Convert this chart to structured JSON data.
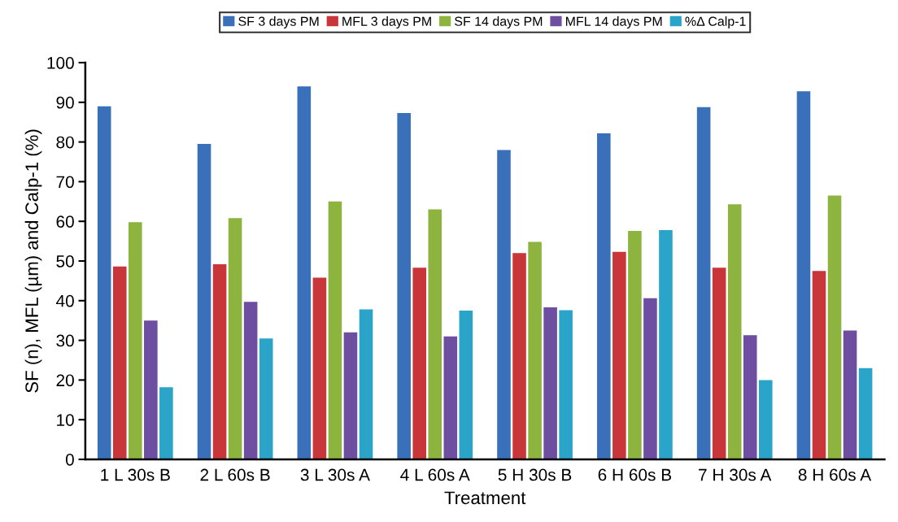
{
  "chart_data": {
    "type": "bar",
    "xlabel": "Treatment",
    "ylabel": "SF (n), MFL (µm) and Calp-1 (%)",
    "categories": [
      "1 L 30s B",
      "2 L 60s B",
      "3 L 30s A",
      "4 L 60s A",
      "5 H 30s B",
      "6 H 60s B",
      "7 H 30s A",
      "8 H 60s A"
    ],
    "series": [
      {
        "name": "SF 3 days PM",
        "color": "#3a6fba",
        "values": [
          89,
          79.5,
          94,
          87.3,
          78,
          82.2,
          88.8,
          92.8
        ]
      },
      {
        "name": "MFL 3 days PM",
        "color": "#c9363a",
        "values": [
          48.6,
          49.2,
          45.8,
          48.3,
          52,
          52.3,
          48.3,
          47.5
        ]
      },
      {
        "name": "SF 14 days PM",
        "color": "#8cb43f",
        "values": [
          59.8,
          60.8,
          65,
          63,
          54.8,
          57.6,
          64.3,
          66.5
        ]
      },
      {
        "name": "MFL 14 days PM",
        "color": "#6e4ea0",
        "values": [
          35,
          39.7,
          32,
          31,
          38.3,
          40.6,
          31.3,
          32.5
        ]
      },
      {
        "name": "%Δ Calp-1",
        "color": "#2aa4c9",
        "values": [
          18.2,
          30.5,
          37.8,
          37.5,
          37.6,
          57.8,
          20,
          23
        ]
      }
    ],
    "ylim": [
      0,
      100
    ],
    "yticks": [
      0,
      10,
      20,
      30,
      40,
      50,
      60,
      70,
      80,
      90,
      100
    ],
    "grid": false,
    "legend": "top"
  }
}
